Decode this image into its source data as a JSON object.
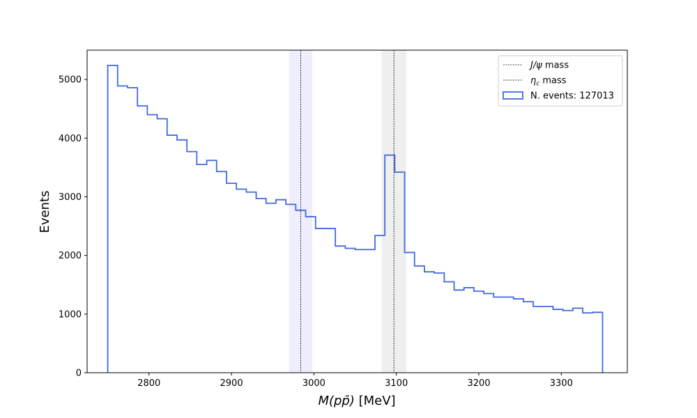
{
  "chart_data": {
    "type": "histogram",
    "xlabel": "M(pp̄) [MeV]",
    "ylabel": "Events",
    "xlim": [
      2725,
      3380
    ],
    "ylim": [
      0,
      5500
    ],
    "xticks": [
      2800,
      2900,
      3000,
      3100,
      3200,
      3300
    ],
    "yticks": [
      0,
      1000,
      2000,
      3000,
      4000,
      5000
    ],
    "grid": false,
    "legend_position": "top-right",
    "histogram": {
      "name": "N. events: 127013",
      "color": "#4169e1",
      "bin_edges": [
        2750,
        2762,
        2774,
        2786,
        2798,
        2810,
        2822,
        2834,
        2846,
        2858,
        2870,
        2882,
        2894,
        2906,
        2918,
        2930,
        2942,
        2954,
        2966,
        2978,
        2990,
        3002,
        3014,
        3026,
        3038,
        3050,
        3062,
        3074,
        3086,
        3098,
        3110,
        3122,
        3134,
        3146,
        3158,
        3170,
        3182,
        3194,
        3206,
        3218,
        3230,
        3242,
        3254,
        3266,
        3278,
        3290,
        3302,
        3314,
        3326,
        3338,
        3350
      ],
      "counts": [
        5240,
        4890,
        4860,
        4550,
        4400,
        4330,
        4050,
        3970,
        3770,
        3550,
        3620,
        3430,
        3230,
        3130,
        3080,
        2970,
        2890,
        2950,
        2870,
        2770,
        2660,
        2460,
        2460,
        2160,
        2120,
        2100,
        2100,
        2340,
        3710,
        3420,
        2050,
        1820,
        1720,
        1700,
        1550,
        1410,
        1450,
        1390,
        1350,
        1290,
        1290,
        1260,
        1210,
        1130,
        1130,
        1080,
        1060,
        1100,
        1020,
        1030
      ]
    },
    "reference_lines": [
      {
        "name": "η_c mass",
        "label_main": "η",
        "label_sub": "c",
        "label_rest": " mass",
        "x": 2984,
        "band": [
          2970,
          2998
        ],
        "band_color": "#eeeeff",
        "line_color": "#000000"
      },
      {
        "name": "J/ψ mass",
        "label_main": "J/ψ",
        "label_sub": "",
        "label_rest": " mass",
        "x": 3097,
        "band": [
          3082,
          3112
        ],
        "band_color": "#efefef",
        "line_color": "#000000"
      }
    ]
  }
}
